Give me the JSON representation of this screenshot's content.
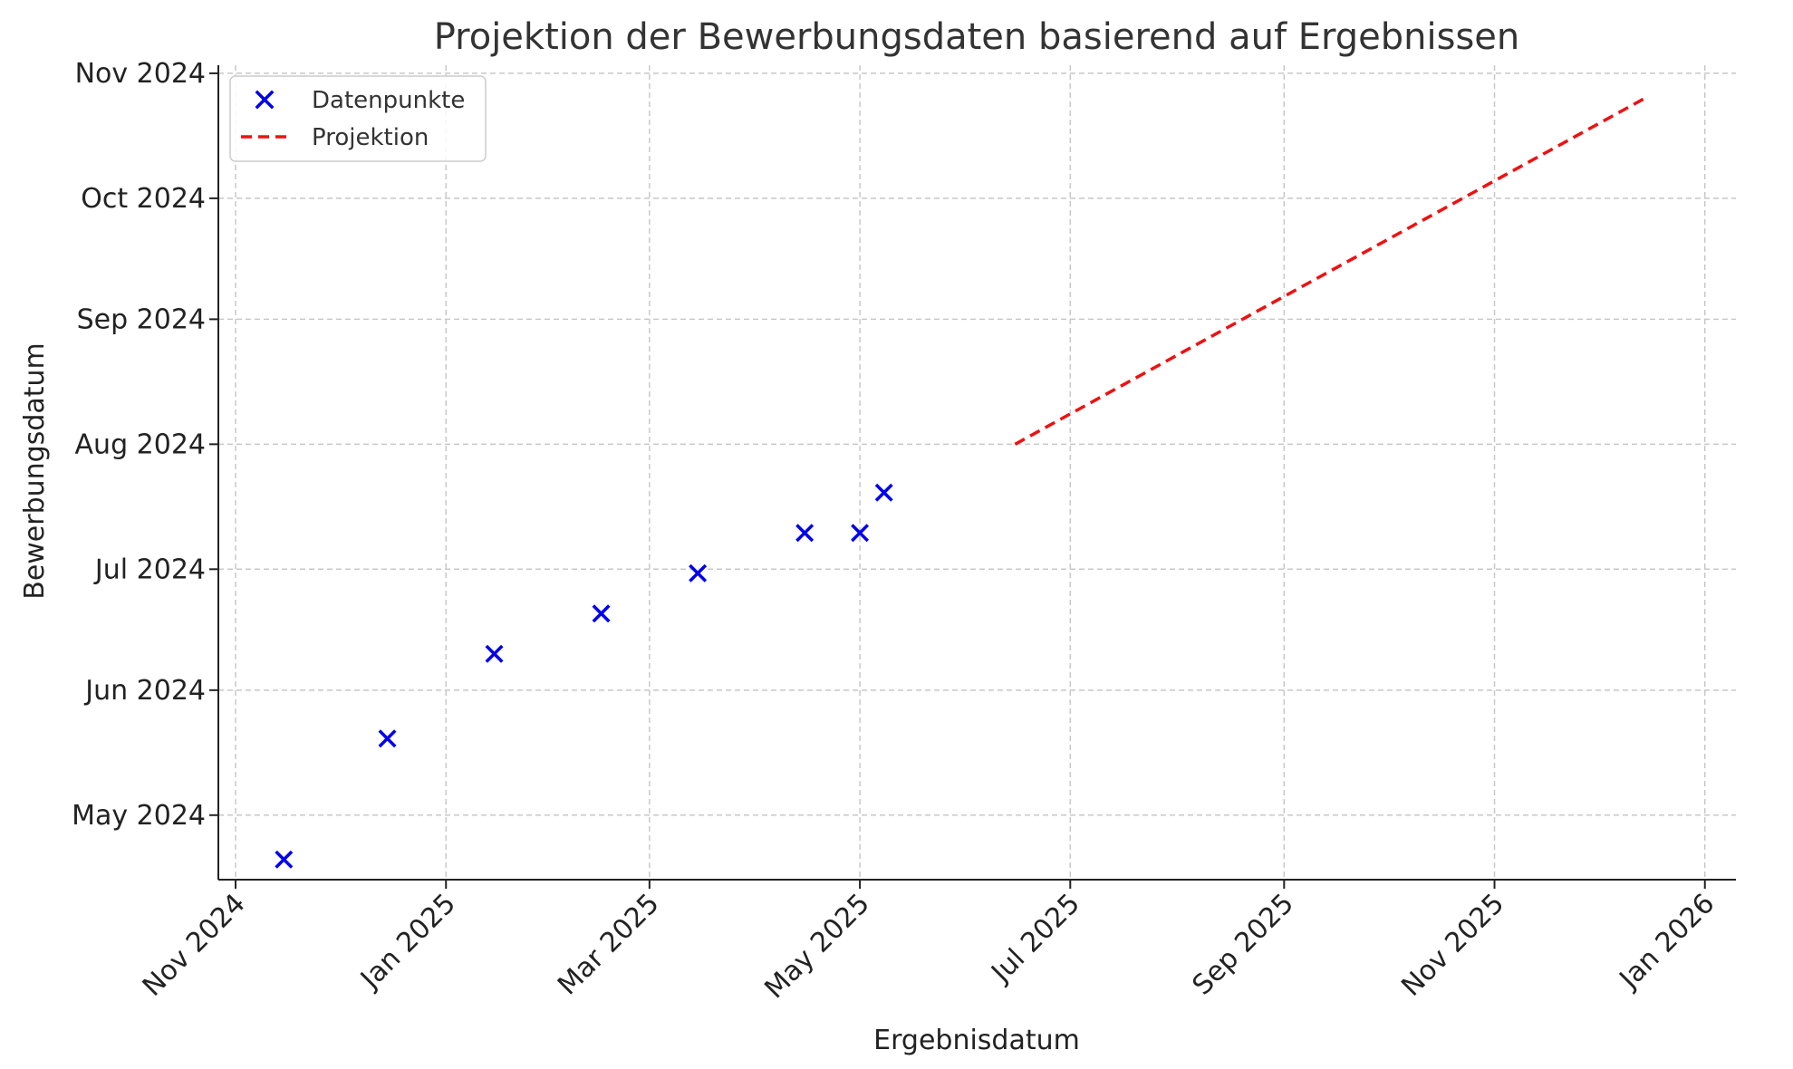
{
  "chart_data": {
    "type": "scatter",
    "title": "Projektion der Bewerbungsdaten basierend auf Ergebnissen",
    "xlabel": "Ergebnisdatum",
    "ylabel": "Bewerbungsdatum",
    "grid": true,
    "legend_position": "top-left",
    "x_axis": {
      "type": "date",
      "range": [
        "2024-10-27",
        "2026-01-10"
      ],
      "ticks": [
        {
          "value": "2024-11-01",
          "label": "Nov 2024"
        },
        {
          "value": "2025-01-01",
          "label": "Jan 2025"
        },
        {
          "value": "2025-03-01",
          "label": "Mar 2025"
        },
        {
          "value": "2025-05-01",
          "label": "May 2025"
        },
        {
          "value": "2025-07-01",
          "label": "Jul 2025"
        },
        {
          "value": "2025-09-01",
          "label": "Sep 2025"
        },
        {
          "value": "2025-11-01",
          "label": "Nov 2025"
        },
        {
          "value": "2026-01-01",
          "label": "Jan 2026"
        }
      ]
    },
    "y_axis": {
      "type": "date",
      "range": [
        "2024-04-15",
        "2024-11-03"
      ],
      "ticks": [
        {
          "value": "2024-05-01",
          "label": "May 2024"
        },
        {
          "value": "2024-06-01",
          "label": "Jun 2024"
        },
        {
          "value": "2024-07-01",
          "label": "Jul 2024"
        },
        {
          "value": "2024-08-01",
          "label": "Aug 2024"
        },
        {
          "value": "2024-09-01",
          "label": "Sep 2024"
        },
        {
          "value": "2024-10-01",
          "label": "Oct 2024"
        },
        {
          "value": "2024-11-01",
          "label": "Nov 2024"
        }
      ]
    },
    "series": [
      {
        "name": "Datenpunkte",
        "kind": "scatter",
        "marker": "x",
        "color": "#0000ee",
        "points": [
          {
            "x": "2024-11-15",
            "y": "2024-04-20"
          },
          {
            "x": "2024-12-15",
            "y": "2024-05-20"
          },
          {
            "x": "2025-01-15",
            "y": "2024-06-10"
          },
          {
            "x": "2025-02-15",
            "y": "2024-06-20"
          },
          {
            "x": "2025-03-15",
            "y": "2024-06-30"
          },
          {
            "x": "2025-04-15",
            "y": "2024-07-10"
          },
          {
            "x": "2025-05-01",
            "y": "2024-07-10"
          },
          {
            "x": "2025-05-08",
            "y": "2024-07-20"
          }
        ]
      },
      {
        "name": "Projektion",
        "kind": "line",
        "style": "dashed",
        "color": "#ee1111",
        "points": [
          {
            "x": "2025-06-15",
            "y": "2024-08-01"
          },
          {
            "x": "2025-12-15",
            "y": "2024-10-26"
          }
        ]
      }
    ]
  }
}
